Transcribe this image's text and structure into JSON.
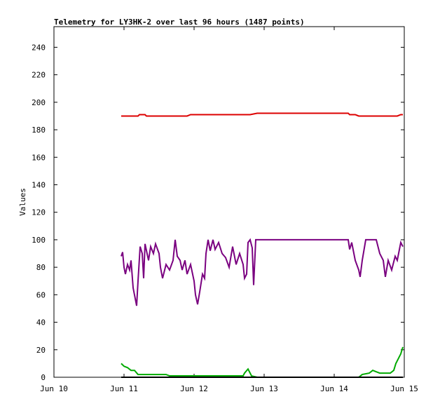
{
  "chart_data": {
    "type": "line",
    "title": "Telemetry for LY3HK-2 over last 96 hours (1487 points)",
    "y_label": "Values",
    "xlim": [
      0,
      5
    ],
    "xticks": [
      {
        "value": 0,
        "label": "Jun 10"
      },
      {
        "value": 1,
        "label": "Jun 11"
      },
      {
        "value": 2,
        "label": "Jun 12"
      },
      {
        "value": 3,
        "label": "Jun 13"
      },
      {
        "value": 4,
        "label": "Jun 14"
      },
      {
        "value": 5,
        "label": "Jun 15"
      }
    ],
    "ylim": [
      0,
      255
    ],
    "yticks": [
      0,
      20,
      40,
      60,
      80,
      100,
      120,
      140,
      160,
      180,
      200,
      220,
      240
    ],
    "series": [
      {
        "color": "#dd0000",
        "x": [
          0.96,
          1.2,
          1.22,
          1.3,
          1.32,
          1.9,
          1.95,
          2.8,
          2.9,
          4.2,
          4.22,
          4.3,
          4.35,
          4.9,
          4.95,
          4.98
        ],
        "values": [
          190,
          190,
          191,
          191,
          190,
          190,
          191,
          191,
          192,
          192,
          191,
          191,
          190,
          190,
          191,
          191
        ]
      },
      {
        "color": "#7a0080",
        "x": [
          0.96,
          0.98,
          1.0,
          1.02,
          1.05,
          1.08,
          1.1,
          1.13,
          1.18,
          1.2,
          1.23,
          1.26,
          1.28,
          1.3,
          1.35,
          1.38,
          1.42,
          1.45,
          1.5,
          1.52,
          1.55,
          1.6,
          1.65,
          1.7,
          1.73,
          1.76,
          1.8,
          1.83,
          1.87,
          1.9,
          1.95,
          2.0,
          2.02,
          2.05,
          2.08,
          2.12,
          2.15,
          2.17,
          2.2,
          2.23,
          2.27,
          2.3,
          2.35,
          2.4,
          2.45,
          2.5,
          2.55,
          2.6,
          2.65,
          2.7,
          2.72,
          2.75,
          2.77,
          2.8,
          2.83,
          2.85,
          2.88,
          3.5,
          4.2,
          4.22,
          4.25,
          4.3,
          4.35,
          4.37,
          4.4,
          4.45,
          4.6,
          4.65,
          4.7,
          4.73,
          4.77,
          4.82,
          4.87,
          4.9,
          4.95,
          4.98
        ],
        "values": [
          88,
          91,
          80,
          75,
          82,
          78,
          85,
          65,
          52,
          70,
          95,
          90,
          72,
          97,
          85,
          95,
          90,
          97,
          90,
          80,
          72,
          82,
          78,
          85,
          100,
          88,
          85,
          78,
          85,
          75,
          82,
          70,
          60,
          53,
          62,
          75,
          72,
          90,
          100,
          92,
          100,
          93,
          98,
          90,
          87,
          80,
          95,
          82,
          90,
          82,
          72,
          75,
          98,
          100,
          94,
          67,
          100,
          100,
          100,
          93,
          98,
          85,
          78,
          73,
          85,
          100,
          100,
          90,
          85,
          73,
          85,
          78,
          88,
          85,
          98,
          95
        ]
      },
      {
        "color": "#00aa00",
        "x": [
          0.96,
          1.0,
          1.05,
          1.1,
          1.15,
          1.2,
          1.6,
          1.65,
          2.7,
          2.72,
          2.77,
          2.82,
          2.9,
          4.35,
          4.4,
          4.5,
          4.55,
          4.6,
          4.65,
          4.8,
          4.85,
          4.88,
          4.92,
          4.95,
          4.98
        ],
        "values": [
          10,
          8,
          7,
          5,
          5,
          2,
          2,
          1,
          1,
          3,
          6,
          1,
          0,
          0,
          2,
          3,
          5,
          4,
          3,
          3,
          5,
          10,
          14,
          17,
          22
        ]
      },
      {
        "color": "#000000",
        "x": [
          0.96,
          4.98
        ],
        "values": [
          0,
          0
        ]
      }
    ]
  }
}
